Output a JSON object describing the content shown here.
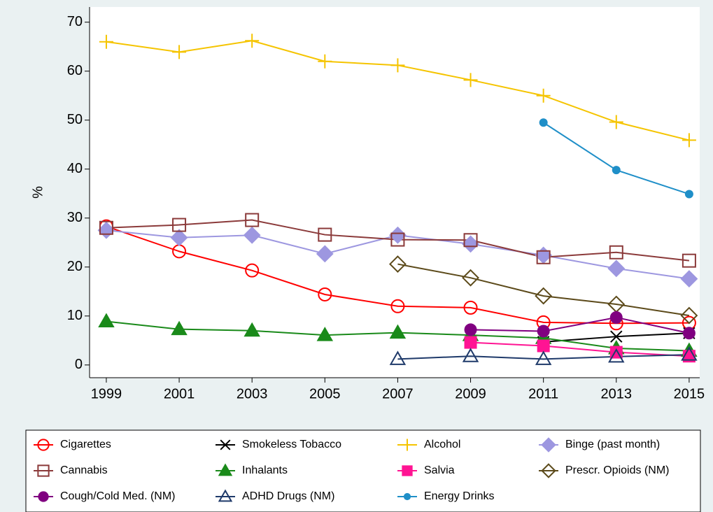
{
  "chart_data": {
    "type": "line",
    "y_label": "%",
    "x": [
      1999,
      2001,
      2003,
      2005,
      2007,
      2009,
      2011,
      2013,
      2015
    ],
    "xlim": [
      1998.54,
      2015.29
    ],
    "xticks": [
      1999,
      2001,
      2003,
      2005,
      2007,
      2009,
      2011,
      2013,
      2015
    ],
    "ylim": [
      -2.6,
      73.1
    ],
    "yticks": [
      0,
      10,
      20,
      30,
      40,
      50,
      60,
      70
    ],
    "grid": false,
    "legend": "bottom",
    "series": [
      {
        "name": "Cigarettes",
        "color": "#ff0000",
        "marker": "circle-open",
        "values": [
          28.3,
          23.2,
          19.3,
          14.4,
          12.0,
          11.7,
          8.7,
          8.5,
          8.6
        ]
      },
      {
        "name": "Smokeless Tobacco",
        "color": "#000000",
        "marker": "x",
        "values": [
          null,
          null,
          null,
          null,
          null,
          null,
          4.7,
          5.8,
          6.5
        ]
      },
      {
        "name": "Alcohol",
        "color": "#f5c400",
        "marker": "plus",
        "values": [
          66.0,
          63.9,
          66.2,
          62.0,
          61.2,
          58.2,
          55.0,
          49.6,
          45.9
        ]
      },
      {
        "name": "Binge (past month)",
        "color": "#9d97e0",
        "marker": "diamond",
        "values": [
          27.5,
          26.0,
          26.5,
          22.7,
          26.5,
          24.7,
          22.4,
          19.7,
          17.6
        ]
      },
      {
        "name": "Cannabis",
        "color": "#8b3a3a",
        "marker": "square-open",
        "values": [
          28.0,
          28.6,
          29.6,
          26.6,
          25.6,
          25.5,
          22.0,
          23.0,
          21.3
        ]
      },
      {
        "name": "Inhalants",
        "color": "#1a8a1a",
        "marker": "triangle",
        "values": [
          8.9,
          7.3,
          7.0,
          6.1,
          6.6,
          6.1,
          5.5,
          3.4,
          2.9
        ]
      },
      {
        "name": "Salvia",
        "color": "#ff1493",
        "marker": "square",
        "values": [
          null,
          null,
          null,
          null,
          null,
          4.6,
          3.9,
          2.6,
          1.8
        ]
      },
      {
        "name": "Prescr. Opioids (NM)",
        "color": "#5c4a1a",
        "marker": "diamond-open",
        "values": [
          null,
          null,
          null,
          null,
          20.6,
          17.8,
          14.1,
          12.4,
          10.1
        ]
      },
      {
        "name": "Cough/Cold Med. (NM)",
        "color": "#800080",
        "marker": "circle",
        "values": [
          null,
          null,
          null,
          null,
          null,
          7.2,
          6.9,
          9.7,
          6.5
        ]
      },
      {
        "name": "ADHD Drugs (NM)",
        "color": "#1f3a6a",
        "marker": "triangle-open",
        "values": [
          null,
          null,
          null,
          null,
          1.2,
          1.8,
          1.2,
          1.7,
          2.1
        ]
      },
      {
        "name": "Energy Drinks",
        "color": "#1f8fc8",
        "marker": "circle-small",
        "values": [
          null,
          null,
          null,
          null,
          null,
          null,
          49.5,
          39.8,
          34.9
        ]
      }
    ]
  }
}
